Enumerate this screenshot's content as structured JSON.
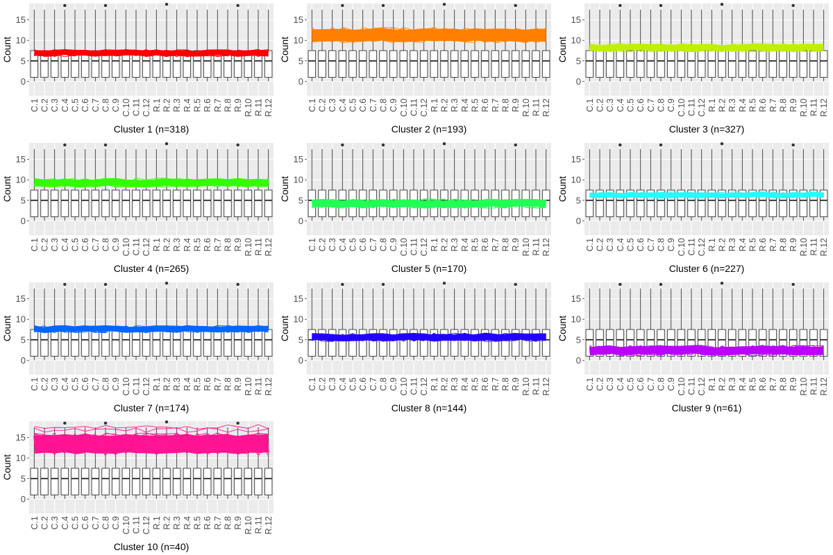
{
  "chart_data": [
    {
      "type": "box+line",
      "title": "Cluster 1 (n=318)",
      "color": "#FF0000",
      "ylabel": "Count",
      "ylim": [
        -3.5,
        19
      ],
      "yticks": [
        0,
        5,
        10,
        15
      ],
      "categories": [
        "C.1",
        "C.2",
        "C.3",
        "C.4",
        "C.5",
        "C.6",
        "C.7",
        "C.8",
        "C.9",
        "C.10",
        "C.11",
        "C.12",
        "R.1",
        "R.2",
        "R.3",
        "R.4",
        "R.5",
        "R.6",
        "R.7",
        "R.8",
        "R.9",
        "R.10",
        "R.11",
        "R.12"
      ],
      "box": {
        "q1": 1,
        "median": 5,
        "q3": 7.5,
        "whisker_low": 0,
        "whisker_high": 17.5
      },
      "outliers": [
        {
          "x": "C.4",
          "y": 18.5
        },
        {
          "x": "C.8",
          "y": 18.5
        },
        {
          "x": "R.2",
          "y": 18.8
        },
        {
          "x": "R.9",
          "y": 18.5
        }
      ],
      "band": {
        "center": 6.9,
        "half_width": 0.7
      }
    },
    {
      "type": "box+line",
      "title": "Cluster 2 (n=193)",
      "color": "#FF8000",
      "ylabel": "Count",
      "ylim": [
        -3.5,
        19
      ],
      "yticks": [
        0,
        5,
        10,
        15
      ],
      "categories": [
        "C.1",
        "C.2",
        "C.3",
        "C.4",
        "C.5",
        "C.6",
        "C.7",
        "C.8",
        "C.9",
        "C.10",
        "C.11",
        "C.12",
        "R.1",
        "R.2",
        "R.3",
        "R.4",
        "R.5",
        "R.6",
        "R.7",
        "R.8",
        "R.9",
        "R.10",
        "R.11",
        "R.12"
      ],
      "box": {
        "q1": 1,
        "median": 5,
        "q3": 7.5,
        "whisker_low": 0,
        "whisker_high": 17.5
      },
      "outliers": [
        {
          "x": "C.4",
          "y": 18.5
        },
        {
          "x": "C.8",
          "y": 18.5
        },
        {
          "x": "R.2",
          "y": 18.8
        },
        {
          "x": "R.9",
          "y": 18.5
        }
      ],
      "band": {
        "center": 11.3,
        "half_width": 1.5
      }
    },
    {
      "type": "box+line",
      "title": "Cluster 3 (n=327)",
      "color": "#C0F000",
      "ylabel": "Count",
      "ylim": [
        -3.5,
        19
      ],
      "yticks": [
        0,
        5,
        10,
        15
      ],
      "categories": [
        "C.1",
        "C.2",
        "C.3",
        "C.4",
        "C.5",
        "C.6",
        "C.7",
        "C.8",
        "C.9",
        "C.10",
        "C.11",
        "C.12",
        "R.1",
        "R.2",
        "R.3",
        "R.4",
        "R.5",
        "R.6",
        "R.7",
        "R.8",
        "R.9",
        "R.10",
        "R.11",
        "R.12"
      ],
      "box": {
        "q1": 1,
        "median": 5,
        "q3": 7.5,
        "whisker_low": 0,
        "whisker_high": 17.5
      },
      "outliers": [
        {
          "x": "C.4",
          "y": 18.5
        },
        {
          "x": "C.8",
          "y": 18.5
        },
        {
          "x": "R.2",
          "y": 18.8
        },
        {
          "x": "R.9",
          "y": 18.5
        }
      ],
      "band": {
        "center": 8.2,
        "half_width": 0.8
      }
    },
    {
      "type": "box+line",
      "title": "Cluster 4 (n=265)",
      "color": "#33FF00",
      "ylabel": "Count",
      "ylim": [
        -3.5,
        19
      ],
      "yticks": [
        0,
        5,
        10,
        15
      ],
      "categories": [
        "C.1",
        "C.2",
        "C.3",
        "C.4",
        "C.5",
        "C.6",
        "C.7",
        "C.8",
        "C.9",
        "C.10",
        "C.11",
        "C.12",
        "R.1",
        "R.2",
        "R.3",
        "R.4",
        "R.5",
        "R.6",
        "R.7",
        "R.8",
        "R.9",
        "R.10",
        "R.11",
        "R.12"
      ],
      "box": {
        "q1": 1,
        "median": 5,
        "q3": 7.5,
        "whisker_low": 0,
        "whisker_high": 17.5
      },
      "outliers": [
        {
          "x": "C.4",
          "y": 18.5
        },
        {
          "x": "C.8",
          "y": 18.5
        },
        {
          "x": "R.2",
          "y": 18.8
        },
        {
          "x": "R.9",
          "y": 18.5
        }
      ],
      "band": {
        "center": 9.3,
        "half_width": 0.9
      }
    },
    {
      "type": "box+line",
      "title": "Cluster 5 (n=170)",
      "color": "#22FF55",
      "ylabel": "Count",
      "ylim": [
        -3.5,
        19
      ],
      "yticks": [
        0,
        5,
        10,
        15
      ],
      "categories": [
        "C.1",
        "C.2",
        "C.3",
        "C.4",
        "C.5",
        "C.6",
        "C.7",
        "C.8",
        "C.9",
        "C.10",
        "C.11",
        "C.12",
        "R.1",
        "R.2",
        "R.3",
        "R.4",
        "R.5",
        "R.6",
        "R.7",
        "R.8",
        "R.9",
        "R.10",
        "R.11",
        "R.12"
      ],
      "box": {
        "q1": 1,
        "median": 5,
        "q3": 7.5,
        "whisker_low": 0,
        "whisker_high": 17.5
      },
      "outliers": [
        {
          "x": "C.4",
          "y": 18.5
        },
        {
          "x": "C.8",
          "y": 18.5
        },
        {
          "x": "R.2",
          "y": 18.8
        },
        {
          "x": "R.9",
          "y": 18.5
        }
      ],
      "band": {
        "center": 4.2,
        "half_width": 0.9
      }
    },
    {
      "type": "box+line",
      "title": "Cluster 6 (n=227)",
      "color": "#22FFFF",
      "ylabel": "Count",
      "ylim": [
        -3.5,
        19
      ],
      "yticks": [
        0,
        5,
        10,
        15
      ],
      "categories": [
        "C.1",
        "C.2",
        "C.3",
        "C.4",
        "C.5",
        "C.6",
        "C.7",
        "C.8",
        "C.9",
        "C.10",
        "C.11",
        "C.12",
        "R.1",
        "R.2",
        "R.3",
        "R.4",
        "R.5",
        "R.6",
        "R.7",
        "R.8",
        "R.9",
        "R.10",
        "R.11",
        "R.12"
      ],
      "box": {
        "q1": 1,
        "median": 5,
        "q3": 7.5,
        "whisker_low": 0,
        "whisker_high": 17.5
      },
      "outliers": [
        {
          "x": "C.4",
          "y": 18.5
        },
        {
          "x": "C.8",
          "y": 18.5
        },
        {
          "x": "R.2",
          "y": 18.8
        },
        {
          "x": "R.9",
          "y": 18.5
        }
      ],
      "band": {
        "center": 6.3,
        "half_width": 0.6
      }
    },
    {
      "type": "box+line",
      "title": "Cluster 7 (n=174)",
      "color": "#0066FF",
      "ylabel": "Count",
      "ylim": [
        -3.5,
        19
      ],
      "yticks": [
        0,
        5,
        10,
        15
      ],
      "categories": [
        "C.1",
        "C.2",
        "C.3",
        "C.4",
        "C.5",
        "C.6",
        "C.7",
        "C.8",
        "C.9",
        "C.10",
        "C.11",
        "C.12",
        "R.1",
        "R.2",
        "R.3",
        "R.4",
        "R.5",
        "R.6",
        "R.7",
        "R.8",
        "R.9",
        "R.10",
        "R.11",
        "R.12"
      ],
      "box": {
        "q1": 1,
        "median": 5,
        "q3": 7.5,
        "whisker_low": 0,
        "whisker_high": 17.5
      },
      "outliers": [
        {
          "x": "C.4",
          "y": 18.5
        },
        {
          "x": "C.8",
          "y": 18.5
        },
        {
          "x": "R.2",
          "y": 18.8
        },
        {
          "x": "R.9",
          "y": 18.5
        }
      ],
      "band": {
        "center": 7.6,
        "half_width": 0.7
      }
    },
    {
      "type": "box+line",
      "title": "Cluster 8 (n=144)",
      "color": "#2200FF",
      "ylabel": "Count",
      "ylim": [
        -3.5,
        19
      ],
      "yticks": [
        0,
        5,
        10,
        15
      ],
      "categories": [
        "C.1",
        "C.2",
        "C.3",
        "C.4",
        "C.5",
        "C.6",
        "C.7",
        "C.8",
        "C.9",
        "C.10",
        "C.11",
        "C.12",
        "R.1",
        "R.2",
        "R.3",
        "R.4",
        "R.5",
        "R.6",
        "R.7",
        "R.8",
        "R.9",
        "R.10",
        "R.11",
        "R.12"
      ],
      "box": {
        "q1": 1,
        "median": 5,
        "q3": 7.5,
        "whisker_low": 0,
        "whisker_high": 17.5
      },
      "outliers": [
        {
          "x": "C.4",
          "y": 18.5
        },
        {
          "x": "C.8",
          "y": 18.5
        },
        {
          "x": "R.2",
          "y": 18.8
        },
        {
          "x": "R.9",
          "y": 18.5
        }
      ],
      "band": {
        "center": 5.6,
        "half_width": 0.8
      }
    },
    {
      "type": "box+line",
      "title": "Cluster 9 (n=61)",
      "color": "#BB00FF",
      "ylabel": "Count",
      "ylim": [
        -3.5,
        19
      ],
      "yticks": [
        0,
        5,
        10,
        15
      ],
      "categories": [
        "C.1",
        "C.2",
        "C.3",
        "C.4",
        "C.5",
        "C.6",
        "C.7",
        "C.8",
        "C.9",
        "C.10",
        "C.11",
        "C.12",
        "R.1",
        "R.2",
        "R.3",
        "R.4",
        "R.5",
        "R.6",
        "R.7",
        "R.8",
        "R.9",
        "R.10",
        "R.11",
        "R.12"
      ],
      "box": {
        "q1": 1,
        "median": 5,
        "q3": 7.5,
        "whisker_low": 0,
        "whisker_high": 17.5
      },
      "outliers": [
        {
          "x": "C.4",
          "y": 18.5
        },
        {
          "x": "C.8",
          "y": 18.5
        },
        {
          "x": "R.2",
          "y": 18.8
        },
        {
          "x": "R.9",
          "y": 18.5
        }
      ],
      "band": {
        "center": 2.4,
        "half_width": 1.0
      }
    },
    {
      "type": "box+line",
      "title": "Cluster 10 (n=40)",
      "color": "#FF1493",
      "ylabel": "Count",
      "ylim": [
        -3.5,
        19
      ],
      "yticks": [
        0,
        5,
        10,
        15
      ],
      "categories": [
        "C.1",
        "C.2",
        "C.3",
        "C.4",
        "C.5",
        "C.6",
        "C.7",
        "C.8",
        "C.9",
        "C.10",
        "C.11",
        "C.12",
        "R.1",
        "R.2",
        "R.3",
        "R.4",
        "R.5",
        "R.6",
        "R.7",
        "R.8",
        "R.9",
        "R.10",
        "R.11",
        "R.12"
      ],
      "box": {
        "q1": 1,
        "median": 5,
        "q3": 7.5,
        "whisker_low": 0,
        "whisker_high": 17.5
      },
      "outliers": [
        {
          "x": "C.4",
          "y": 18.5
        },
        {
          "x": "C.8",
          "y": 18.5
        },
        {
          "x": "R.2",
          "y": 18.8
        },
        {
          "x": "R.9",
          "y": 18.5
        }
      ],
      "band": {
        "center": 13.4,
        "half_width": 2.2
      },
      "extra_lines": [
        16.8,
        17.6,
        15.4,
        14.6
      ]
    }
  ]
}
